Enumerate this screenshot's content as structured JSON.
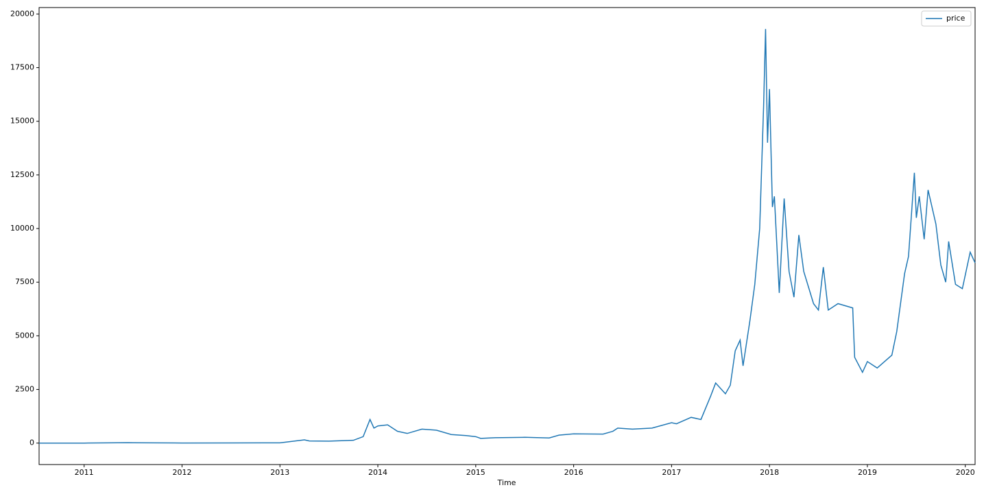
{
  "chart_data": {
    "type": "line",
    "x_label": "Time",
    "x": [
      2010.54,
      2011.0,
      2011.45,
      2011.5,
      2012.0,
      2012.5,
      2013.0,
      2013.25,
      2013.3,
      2013.5,
      2013.75,
      2013.85,
      2013.92,
      2013.96,
      2014.0,
      2014.1,
      2014.2,
      2014.3,
      2014.45,
      2014.6,
      2014.75,
      2014.9,
      2015.0,
      2015.05,
      2015.2,
      2015.5,
      2015.75,
      2015.85,
      2016.0,
      2016.3,
      2016.4,
      2016.45,
      2016.6,
      2016.8,
      2017.0,
      2017.05,
      2017.2,
      2017.3,
      2017.4,
      2017.45,
      2017.55,
      2017.6,
      2017.65,
      2017.7,
      2017.73,
      2017.8,
      2017.85,
      2017.9,
      2017.94,
      2017.96,
      2017.98,
      2018.0,
      2018.03,
      2018.05,
      2018.1,
      2018.15,
      2018.2,
      2018.25,
      2018.3,
      2018.35,
      2018.45,
      2018.5,
      2018.55,
      2018.6,
      2018.7,
      2018.85,
      2018.87,
      2018.95,
      2019.0,
      2019.1,
      2019.25,
      2019.3,
      2019.38,
      2019.42,
      2019.48,
      2019.5,
      2019.53,
      2019.58,
      2019.62,
      2019.7,
      2019.75,
      2019.8,
      2019.83,
      2019.9,
      2019.97,
      2020.05,
      2020.1
    ],
    "series": [
      {
        "name": "price",
        "color": "#1f77b4",
        "values": [
          0,
          0.3,
          20,
          15,
          5,
          7,
          13,
          150,
          100,
          90,
          130,
          300,
          1100,
          700,
          800,
          850,
          550,
          450,
          650,
          600,
          400,
          350,
          300,
          220,
          250,
          270,
          240,
          370,
          430,
          420,
          550,
          700,
          650,
          700,
          950,
          900,
          1200,
          1100,
          2200,
          2800,
          2300,
          2700,
          4300,
          4800,
          3600,
          5700,
          7400,
          10000,
          15700,
          19300,
          14000,
          16500,
          11000,
          11500,
          7000,
          11400,
          8000,
          6800,
          9700,
          8000,
          6500,
          6200,
          8200,
          6200,
          6500,
          6300,
          4000,
          3300,
          3800,
          3500,
          4100,
          5200,
          7900,
          8700,
          12600,
          10500,
          11500,
          9500,
          11800,
          10200,
          8300,
          7500,
          9400,
          7400,
          7200,
          8900,
          8400
        ]
      }
    ],
    "xlim": [
      2010.54,
      2020.1
    ],
    "xticks": [
      2011,
      2012,
      2013,
      2014,
      2015,
      2016,
      2017,
      2018,
      2019,
      2020
    ],
    "ylim": [
      -1000,
      20300
    ],
    "yticks": [
      0,
      2500,
      5000,
      7500,
      10000,
      12500,
      15000,
      17500,
      20000
    ],
    "legend": "upper right"
  }
}
